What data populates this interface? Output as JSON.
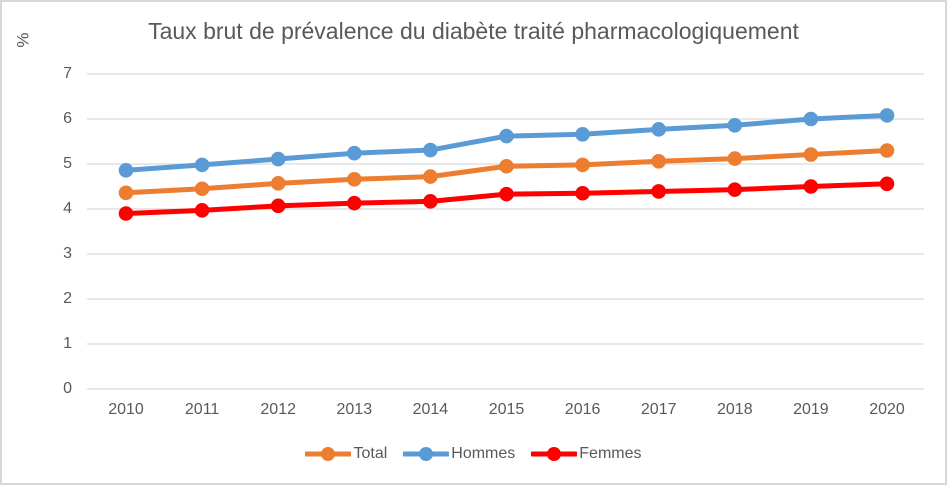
{
  "chart_data": {
    "type": "line",
    "title": "Taux brut de prévalence du diabète traité pharmacologiquement",
    "ylabel": "%",
    "xlabel": "",
    "categories": [
      "2010",
      "2011",
      "2012",
      "2013",
      "2014",
      "2015",
      "2016",
      "2017",
      "2018",
      "2019",
      "2020"
    ],
    "y_ticks": [
      0,
      1,
      2,
      3,
      4,
      5,
      6,
      7
    ],
    "ylim": [
      0,
      7
    ],
    "grid": true,
    "legend_position": "bottom",
    "series": [
      {
        "name": "Total",
        "color": "#ED7D31",
        "values": [
          4.36,
          4.45,
          4.57,
          4.66,
          4.72,
          4.95,
          4.98,
          5.06,
          5.12,
          5.21,
          5.3
        ]
      },
      {
        "name": "Hommes",
        "color": "#5B9BD5",
        "values": [
          4.86,
          4.98,
          5.11,
          5.24,
          5.31,
          5.62,
          5.66,
          5.77,
          5.86,
          6.0,
          6.08
        ]
      },
      {
        "name": "Femmes",
        "color": "#FF0000",
        "values": [
          3.9,
          3.97,
          4.07,
          4.13,
          4.17,
          4.33,
          4.35,
          4.39,
          4.43,
          4.5,
          4.56
        ]
      }
    ]
  },
  "colors": {
    "text": "#595959",
    "gridline": "#D9D9D9",
    "border": "#D7D7D7",
    "background": "#FFFFFF"
  }
}
